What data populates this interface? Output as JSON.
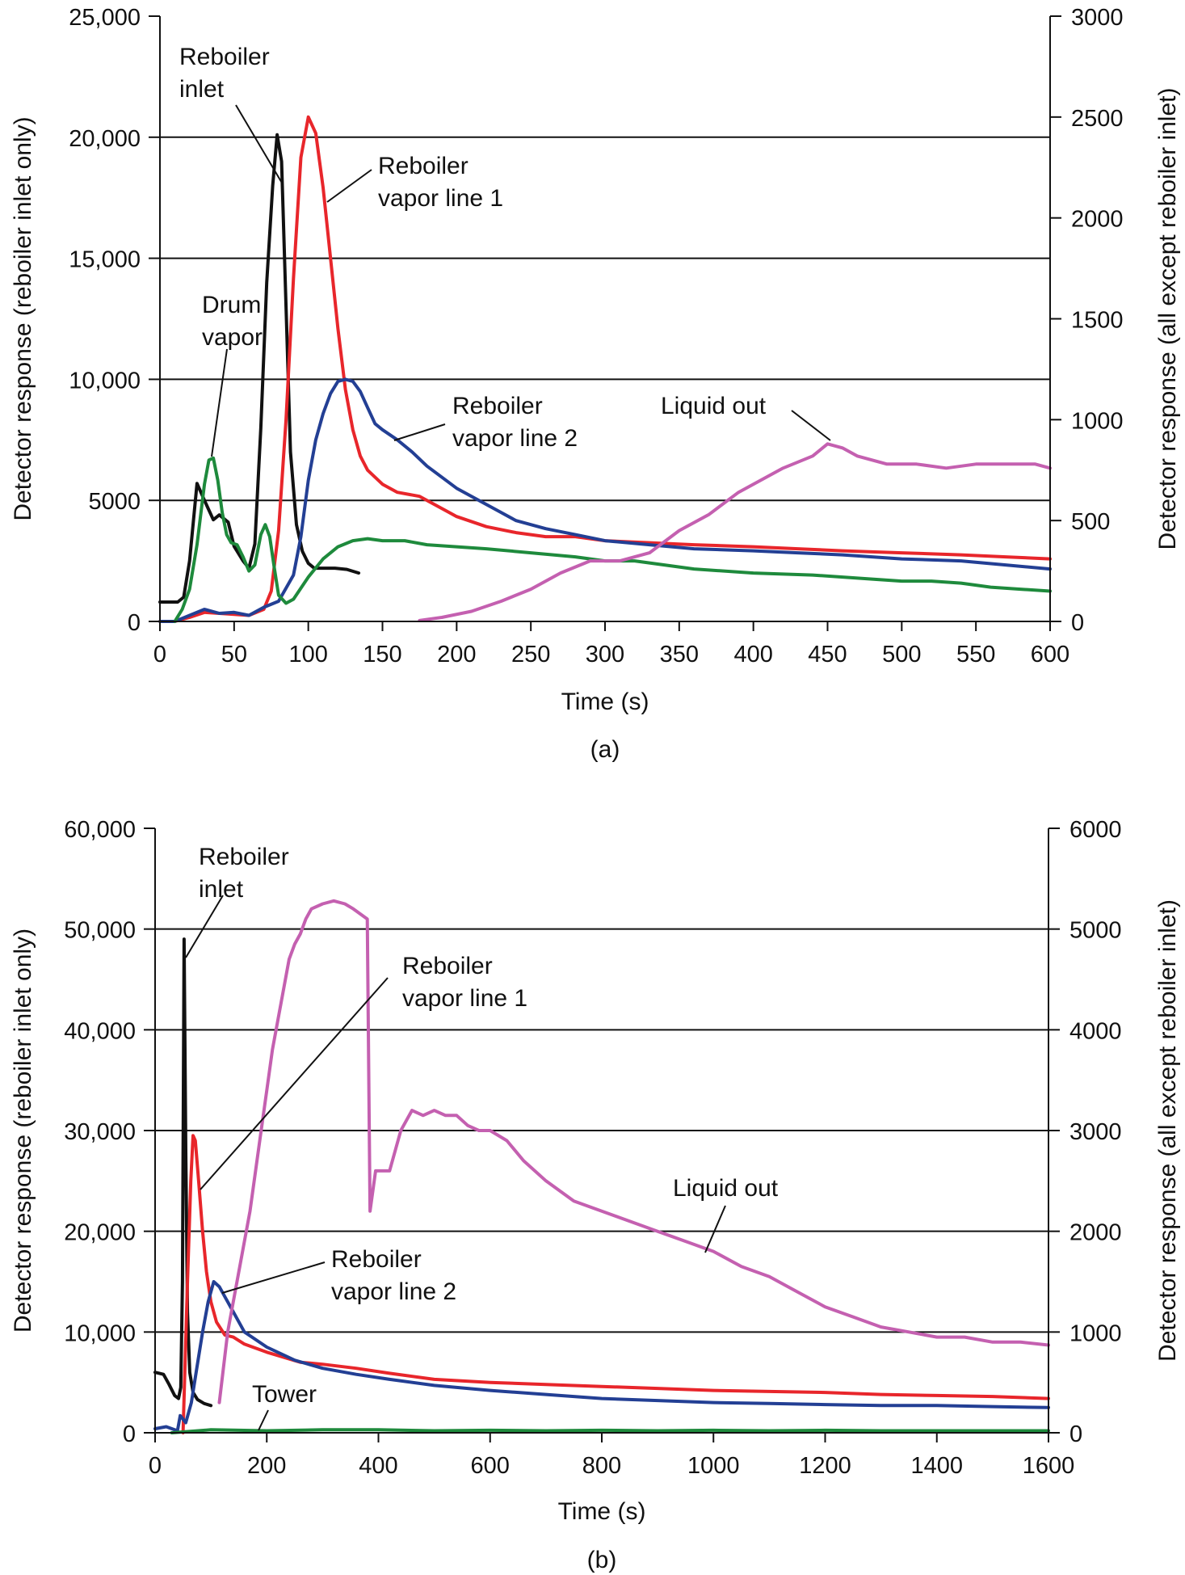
{
  "colors": {
    "reboiler_inlet": "#111111",
    "reboiler_vapor_line_1": "#e8262b",
    "reboiler_vapor_line_2": "#233f94",
    "drum_vapor": "#1e8a3c",
    "liquid_out": "#c460b0",
    "tower": "#1e8a3c",
    "axis": "#111111"
  },
  "chart_data": [
    {
      "type": "line",
      "caption": "(a)",
      "xlabel": "Time (s)",
      "ylabel_left": "Detector response (reboiler inlet only)",
      "ylabel_right": "Detector response (all except reboiler inlet)",
      "xlim": [
        0,
        600
      ],
      "ylim_left": [
        0,
        25000
      ],
      "ylim_right": [
        0,
        3000
      ],
      "x_ticks": [
        0,
        50,
        100,
        150,
        200,
        250,
        300,
        350,
        400,
        450,
        500,
        550,
        600
      ],
      "x_tick_labels": [
        "0",
        "50",
        "100",
        "150",
        "200",
        "250",
        "300",
        "350",
        "400",
        "450",
        "500",
        "550",
        "600"
      ],
      "y_left_ticks": [
        0,
        5000,
        10000,
        15000,
        20000,
        25000
      ],
      "y_left_tick_labels": [
        "0",
        "5000",
        "10,000",
        "15,000",
        "20,000",
        "25,000"
      ],
      "y_right_ticks": [
        0,
        500,
        1000,
        1500,
        2000,
        2500,
        3000
      ],
      "y_right_tick_labels": [
        "0",
        "500",
        "1000",
        "1500",
        "2000",
        "2500",
        "3000"
      ],
      "gridlines_left": [
        5000,
        10000,
        15000,
        20000
      ],
      "series": [
        {
          "name": "Reboiler inlet",
          "key": "reboiler_inlet",
          "axis": "left",
          "x": [
            0,
            12,
            16,
            20,
            25,
            30,
            36,
            40,
            46,
            50,
            56,
            60,
            64,
            68,
            72,
            76,
            79,
            82,
            85,
            88,
            92,
            96,
            100,
            104,
            110,
            118,
            126,
            134
          ],
          "y": [
            800,
            800,
            1000,
            2500,
            5700,
            5000,
            4200,
            4400,
            4100,
            3100,
            2500,
            2200,
            3200,
            8000,
            14000,
            18000,
            20100,
            19000,
            13000,
            7000,
            4000,
            2900,
            2400,
            2200,
            2200,
            2200,
            2150,
            2000
          ]
        },
        {
          "name": "Reboiler vapor line 1",
          "key": "reboiler_vapor_line_1",
          "axis": "right",
          "x": [
            0,
            10,
            20,
            30,
            40,
            50,
            60,
            70,
            75,
            80,
            85,
            90,
            95,
            100,
            105,
            110,
            115,
            120,
            125,
            130,
            135,
            140,
            150,
            160,
            175,
            185,
            200,
            220,
            240,
            260,
            280,
            300,
            330,
            360,
            400,
            430,
            460,
            500,
            540,
            570,
            600
          ],
          "y": [
            0,
            0,
            20,
            45,
            40,
            35,
            30,
            60,
            150,
            450,
            1000,
            1700,
            2300,
            2500,
            2420,
            2150,
            1800,
            1450,
            1150,
            950,
            820,
            750,
            680,
            640,
            620,
            580,
            520,
            470,
            440,
            420,
            420,
            400,
            390,
            380,
            370,
            360,
            350,
            340,
            330,
            320,
            310
          ]
        },
        {
          "name": "Reboiler vapor line 2",
          "key": "reboiler_vapor_line_2",
          "axis": "right",
          "x": [
            0,
            10,
            20,
            30,
            40,
            50,
            60,
            70,
            80,
            90,
            95,
            100,
            105,
            110,
            115,
            120,
            125,
            130,
            135,
            140,
            145,
            150,
            160,
            170,
            180,
            200,
            220,
            240,
            260,
            280,
            300,
            330,
            360,
            400,
            430,
            460,
            500,
            540,
            570,
            600
          ],
          "y": [
            0,
            0,
            30,
            60,
            40,
            45,
            30,
            70,
            100,
            230,
            420,
            700,
            900,
            1030,
            1130,
            1190,
            1200,
            1190,
            1140,
            1060,
            980,
            950,
            900,
            840,
            770,
            660,
            580,
            500,
            460,
            430,
            400,
            380,
            360,
            350,
            340,
            330,
            310,
            300,
            280,
            260
          ]
        },
        {
          "name": "Drum vapor",
          "key": "drum_vapor",
          "axis": "right",
          "x": [
            10,
            15,
            20,
            25,
            30,
            33,
            36,
            39,
            42,
            45,
            48,
            52,
            56,
            60,
            64,
            68,
            71,
            74,
            77,
            80,
            85,
            90,
            100,
            110,
            120,
            130,
            140,
            150,
            165,
            180,
            200,
            220,
            250,
            280,
            300,
            320,
            340,
            360,
            400,
            440,
            480,
            500,
            520,
            540,
            560,
            580,
            600
          ],
          "y": [
            0,
            60,
            160,
            380,
            680,
            800,
            810,
            700,
            540,
            430,
            390,
            380,
            320,
            250,
            280,
            430,
            480,
            420,
            270,
            130,
            90,
            110,
            220,
            310,
            370,
            400,
            410,
            400,
            400,
            380,
            370,
            360,
            340,
            320,
            300,
            300,
            280,
            260,
            240,
            230,
            210,
            200,
            200,
            190,
            170,
            160,
            150
          ]
        },
        {
          "name": "Liquid out",
          "key": "liquid_out",
          "axis": "right",
          "x": [
            175,
            190,
            210,
            230,
            250,
            270,
            290,
            310,
            330,
            350,
            370,
            390,
            410,
            420,
            440,
            450,
            460,
            470,
            490,
            510,
            530,
            550,
            570,
            590,
            600
          ],
          "y": [
            5,
            20,
            50,
            100,
            160,
            240,
            300,
            300,
            340,
            450,
            530,
            640,
            720,
            760,
            820,
            880,
            860,
            820,
            780,
            780,
            760,
            780,
            780,
            780,
            760
          ]
        }
      ],
      "labels": [
        {
          "key": "reboiler_inlet",
          "lines": [
            "Reboiler",
            "inlet"
          ]
        },
        {
          "key": "reboiler_vapor_line_1",
          "lines": [
            "Reboiler",
            "vapor line 1"
          ]
        },
        {
          "key": "drum_vapor",
          "lines": [
            "Drum",
            "vapor"
          ]
        },
        {
          "key": "reboiler_vapor_line_2",
          "lines": [
            "Reboiler",
            "vapor line 2"
          ]
        },
        {
          "key": "liquid_out",
          "lines": [
            "Liquid out"
          ]
        }
      ]
    },
    {
      "type": "line",
      "caption": "(b)",
      "xlabel": "Time (s)",
      "ylabel_left": "Detector response (reboiler inlet only)",
      "ylabel_right": "Detector response (all except reboiler inlet)",
      "xlim": [
        0,
        1600
      ],
      "ylim_left": [
        0,
        60000
      ],
      "ylim_right": [
        0,
        6000
      ],
      "x_ticks": [
        0,
        200,
        400,
        600,
        800,
        1000,
        1200,
        1400,
        1600
      ],
      "x_tick_labels": [
        "0",
        "200",
        "400",
        "600",
        "800",
        "1000",
        "1200",
        "1400",
        "1600"
      ],
      "y_left_ticks": [
        0,
        10000,
        20000,
        30000,
        40000,
        50000,
        60000
      ],
      "y_left_tick_labels": [
        "0",
        "10,000",
        "20,000",
        "30,000",
        "40,000",
        "50,000",
        "60,000"
      ],
      "y_right_ticks": [
        0,
        1000,
        2000,
        3000,
        4000,
        5000,
        6000
      ],
      "y_right_tick_labels": [
        "0",
        "1000",
        "2000",
        "3000",
        "4000",
        "5000",
        "6000"
      ],
      "gridlines_left": [
        10000,
        20000,
        30000,
        40000,
        50000
      ],
      "series": [
        {
          "name": "Reboiler inlet",
          "key": "reboiler_inlet",
          "axis": "left",
          "x": [
            0,
            15,
            25,
            35,
            42,
            46,
            49,
            52,
            55,
            58,
            62,
            68,
            76,
            88,
            100
          ],
          "y": [
            6000,
            5800,
            4800,
            3700,
            3400,
            4500,
            15000,
            49000,
            28000,
            12000,
            6000,
            4000,
            3300,
            2900,
            2700
          ]
        },
        {
          "name": "Reboiler vapor line 1",
          "key": "reboiler_vapor_line_1",
          "axis": "right",
          "x": [
            50,
            58,
            64,
            68,
            72,
            78,
            85,
            92,
            100,
            110,
            125,
            140,
            160,
            200,
            260,
            300,
            360,
            420,
            500,
            600,
            700,
            800,
            900,
            1000,
            1100,
            1200,
            1300,
            1400,
            1500,
            1600
          ],
          "y": [
            0,
            1500,
            2500,
            2950,
            2900,
            2500,
            2000,
            1600,
            1300,
            1100,
            970,
            950,
            880,
            800,
            700,
            680,
            640,
            590,
            530,
            500,
            480,
            460,
            440,
            420,
            410,
            400,
            380,
            370,
            360,
            340
          ]
        },
        {
          "name": "Reboiler vapor line 2",
          "key": "reboiler_vapor_line_2",
          "axis": "right",
          "x": [
            0,
            20,
            40,
            45,
            55,
            65,
            75,
            85,
            95,
            105,
            115,
            125,
            140,
            160,
            200,
            250,
            300,
            360,
            420,
            500,
            600,
            700,
            800,
            900,
            1000,
            1100,
            1200,
            1300,
            1400,
            1500,
            1600
          ],
          "y": [
            40,
            60,
            20,
            170,
            100,
            300,
            650,
            1000,
            1300,
            1500,
            1450,
            1350,
            1200,
            1000,
            850,
            720,
            640,
            580,
            530,
            470,
            420,
            380,
            340,
            320,
            300,
            290,
            280,
            270,
            270,
            260,
            250
          ]
        },
        {
          "name": "Tower",
          "key": "tower",
          "axis": "right",
          "x": [
            30,
            100,
            200,
            300,
            400,
            500,
            600,
            700,
            800,
            900,
            1000,
            1100,
            1200,
            1300,
            1400,
            1500,
            1600
          ],
          "y": [
            0,
            30,
            20,
            30,
            30,
            20,
            25,
            20,
            25,
            20,
            25,
            20,
            25,
            20,
            20,
            20,
            20
          ]
        },
        {
          "name": "Liquid out",
          "key": "liquid_out",
          "axis": "right",
          "x": [
            115,
            130,
            150,
            170,
            190,
            200,
            210,
            220,
            230,
            240,
            250,
            260,
            270,
            280,
            300,
            320,
            340,
            355,
            380,
            385,
            395,
            420,
            440,
            460,
            480,
            500,
            520,
            540,
            560,
            580,
            600,
            630,
            660,
            700,
            750,
            800,
            850,
            900,
            950,
            1000,
            1050,
            1100,
            1150,
            1200,
            1250,
            1300,
            1350,
            1400,
            1450,
            1500,
            1550,
            1600
          ],
          "y": [
            300,
            1000,
            1600,
            2200,
            3000,
            3400,
            3800,
            4100,
            4400,
            4700,
            4850,
            4950,
            5100,
            5200,
            5250,
            5280,
            5250,
            5200,
            5100,
            2200,
            2600,
            2600,
            3000,
            3200,
            3150,
            3200,
            3150,
            3150,
            3050,
            3000,
            3000,
            2900,
            2700,
            2500,
            2300,
            2200,
            2100,
            2000,
            1900,
            1800,
            1650,
            1550,
            1400,
            1250,
            1150,
            1050,
            1000,
            950,
            950,
            900,
            900,
            870
          ]
        }
      ],
      "labels": [
        {
          "key": "reboiler_inlet",
          "lines": [
            "Reboiler",
            "inlet"
          ]
        },
        {
          "key": "reboiler_vapor_line_1",
          "lines": [
            "Reboiler",
            "vapor line 1"
          ]
        },
        {
          "key": "reboiler_vapor_line_2",
          "lines": [
            "Reboiler",
            "vapor line 2"
          ]
        },
        {
          "key": "liquid_out",
          "lines": [
            "Liquid out"
          ]
        },
        {
          "key": "tower",
          "lines": [
            "Tower"
          ]
        }
      ]
    }
  ]
}
